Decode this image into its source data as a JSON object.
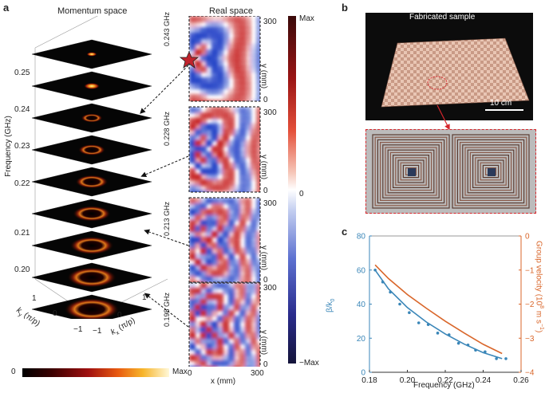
{
  "panel_a": {
    "letter": "a",
    "momentum_title": "Momentum space",
    "real_title": "Real space",
    "freq_axis_label": "Frequency (GHz)",
    "freq_ticks": [
      "0.25",
      "0.24",
      "0.23",
      "0.22",
      "0.21",
      "0.20"
    ],
    "ky_label": "k",
    "ky_sub": "y",
    "ky_unit": "(π/p)",
    "kx_label": "k",
    "kx_sub": "x",
    "kx_unit": "(π/p)",
    "k_ticks": [
      "1",
      "0",
      "−1"
    ],
    "momentum_colorbar": {
      "min": "0",
      "max": "Max"
    },
    "real_panels": [
      {
        "freq": "0.243 GHz"
      },
      {
        "freq": "0.228 GHz"
      },
      {
        "freq": "0.213 GHz"
      },
      {
        "freq": "0.198 GHz"
      }
    ],
    "y_label": "y (mm)",
    "y_ticks": [
      "300",
      "0"
    ],
    "x_label": "x (mm)",
    "x_ticks": [
      "0",
      "300"
    ],
    "diverging_colorbar": {
      "max": "Max",
      "zero": "0",
      "min": "−Max"
    }
  },
  "panel_b": {
    "letter": "b",
    "title": "Fabricated sample",
    "scale_bar": "10 cm"
  },
  "panel_c": {
    "letter": "c",
    "left_label": "β/k",
    "left_label_sub": "0",
    "right_label": "Group velocity (10",
    "right_label_exp": "8",
    "right_label_tail": " m s",
    "right_label_exp2": "−1",
    "right_label_end": ")",
    "x_label": "Frequency (GHz)",
    "colors": {
      "left": "#3a86b8",
      "right": "#d9662a"
    }
  },
  "chart_data": {
    "type": "line",
    "xlabel": "Frequency (GHz)",
    "xlim": [
      0.18,
      0.26
    ],
    "x_ticks": [
      0.18,
      0.2,
      0.22,
      0.24,
      0.26
    ],
    "ylim_left": [
      0,
      80
    ],
    "y_ticks_left": [
      0,
      20,
      40,
      60,
      80
    ],
    "ylim_right": [
      -4,
      0
    ],
    "y_ticks_right": [
      -4,
      -3,
      -2,
      -1,
      0
    ],
    "series": [
      {
        "axis": "left",
        "style": "line",
        "x": [
          0.183,
          0.19,
          0.2,
          0.21,
          0.22,
          0.23,
          0.24,
          0.25
        ],
        "y": [
          60,
          49,
          38,
          29.5,
          22.5,
          16.5,
          11.5,
          8
        ]
      },
      {
        "axis": "left",
        "style": "points",
        "x": [
          0.183,
          0.187,
          0.191,
          0.196,
          0.201,
          0.206,
          0.211,
          0.216,
          0.222,
          0.227,
          0.232,
          0.236,
          0.241,
          0.247,
          0.252
        ],
        "y": [
          60,
          53,
          47,
          40,
          35,
          29,
          28,
          23,
          22,
          17,
          16,
          13,
          12,
          8,
          8
        ]
      },
      {
        "axis": "right",
        "style": "line",
        "x": [
          0.183,
          0.19,
          0.2,
          0.21,
          0.22,
          0.23,
          0.24,
          0.25
        ],
        "y": [
          -0.85,
          -1.25,
          -1.72,
          -2.12,
          -2.5,
          -2.85,
          -3.18,
          -3.45
        ]
      }
    ]
  }
}
